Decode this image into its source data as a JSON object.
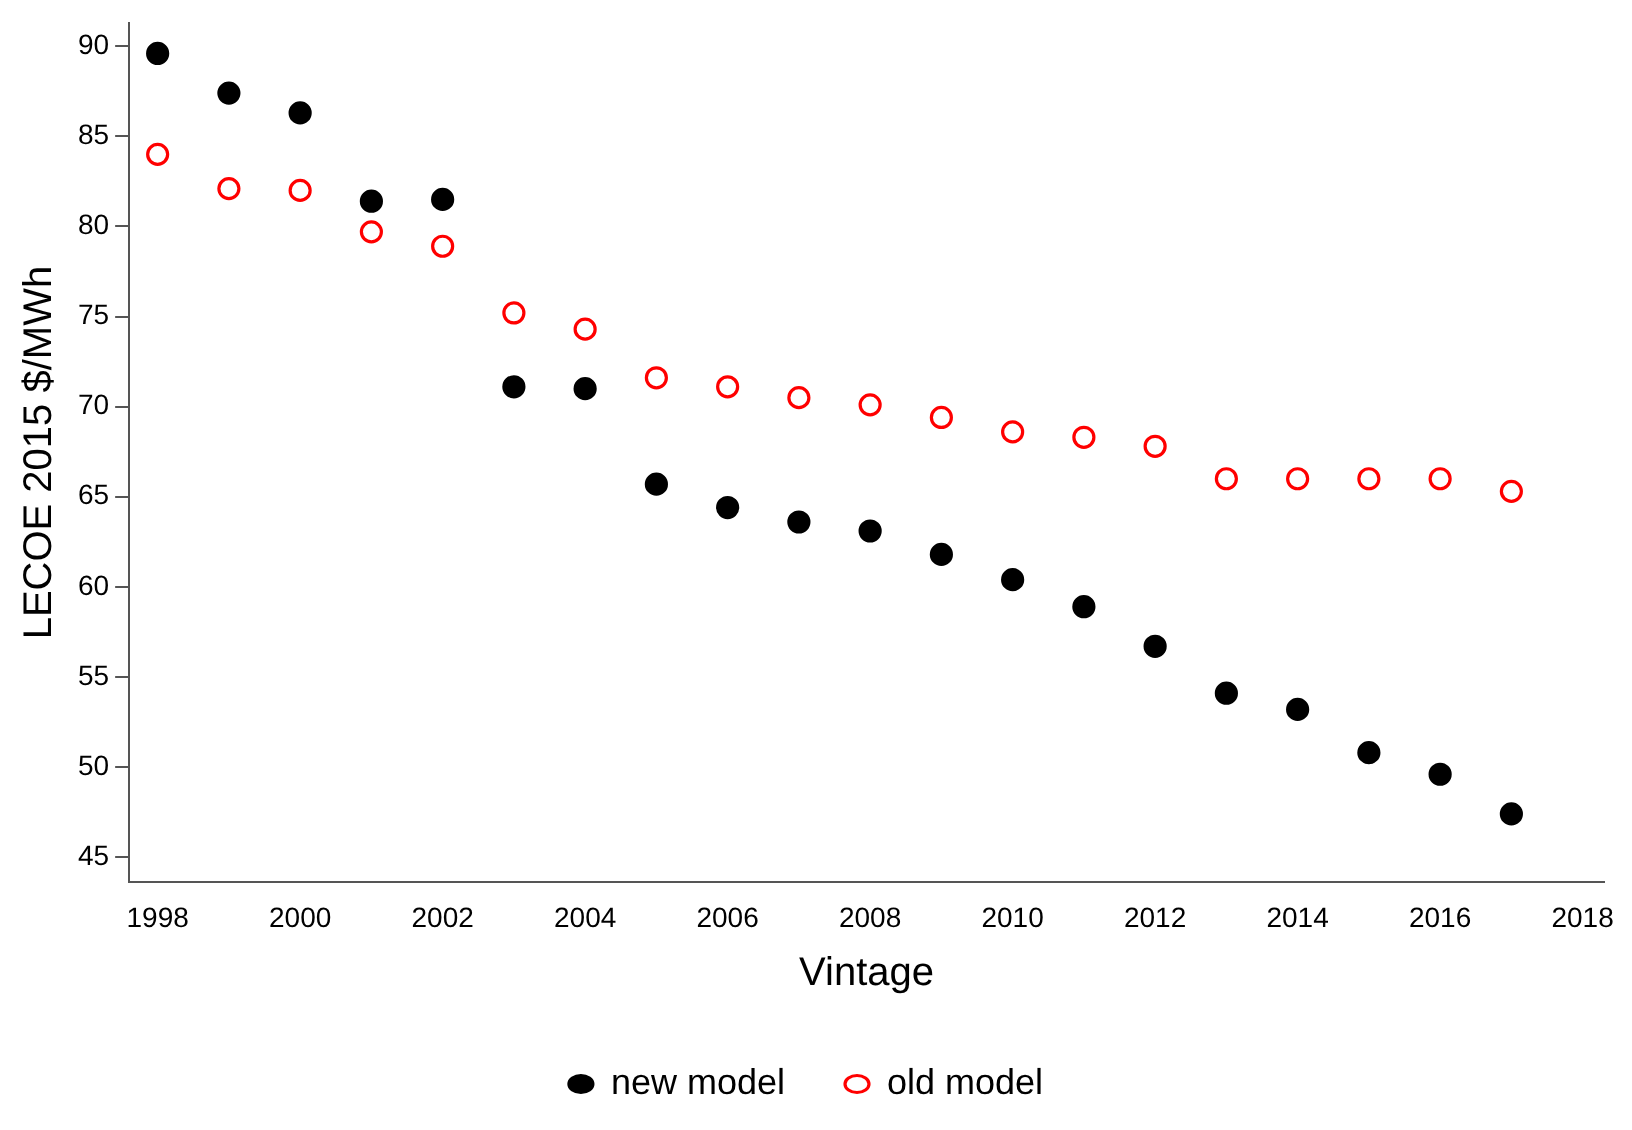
{
  "chart_data": {
    "type": "scatter",
    "xlabel": "Vintage",
    "ylabel": "LECOE 2015 $/MWh",
    "x": [
      1998,
      1999,
      2000,
      2001,
      2002,
      2003,
      2004,
      2005,
      2006,
      2007,
      2008,
      2009,
      2010,
      2011,
      2012,
      2013,
      2014,
      2015,
      2016,
      2017
    ],
    "series": [
      {
        "name": "new model",
        "color": "#000000",
        "values": [
          89.6,
          87.4,
          86.3,
          81.4,
          81.5,
          71.1,
          71.0,
          65.7,
          64.4,
          63.6,
          63.1,
          61.8,
          60.4,
          58.9,
          56.7,
          54.1,
          53.2,
          50.8,
          49.6,
          47.4
        ]
      },
      {
        "name": "old model",
        "color": "#ff0000",
        "values": [
          84.0,
          82.1,
          82.0,
          79.7,
          78.9,
          75.2,
          74.3,
          71.6,
          71.1,
          70.5,
          70.1,
          69.4,
          68.6,
          68.3,
          67.8,
          66.0,
          66.0,
          66.0,
          66.0,
          65.3
        ]
      }
    ],
    "xlim": [
      1997.6,
      2018.3
    ],
    "xticks": [
      1998,
      2000,
      2002,
      2004,
      2006,
      2008,
      2010,
      2012,
      2014,
      2016,
      2018
    ],
    "ylim": [
      43.6,
      91.3
    ],
    "yticks": [
      45,
      50,
      55,
      60,
      65,
      70,
      75,
      80,
      85,
      90
    ],
    "grid": false,
    "legend": "bottom",
    "marker": "circle"
  }
}
